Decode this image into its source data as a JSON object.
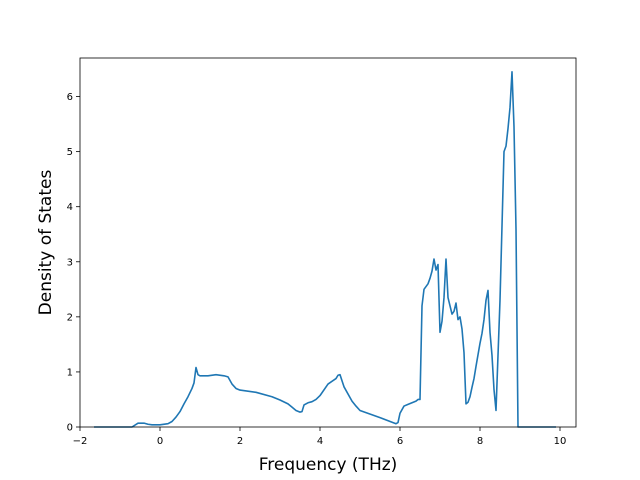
{
  "chart_data": {
    "type": "line",
    "title": "",
    "xlabel": "Frequency (THz)",
    "ylabel": "Density of States",
    "xlim": [
      -2.0,
      10.4
    ],
    "ylim": [
      0,
      6.7
    ],
    "xticks": [
      -2,
      0,
      2,
      4,
      6,
      8,
      10
    ],
    "yticks": [
      0,
      1,
      2,
      3,
      4,
      5,
      6
    ],
    "grid": false,
    "series": [
      {
        "color": "#1f77b4",
        "x": [
          -1.65,
          -0.7,
          -0.55,
          -0.4,
          -0.3,
          -0.2,
          0.0,
          0.2,
          0.3,
          0.4,
          0.5,
          0.6,
          0.7,
          0.8,
          0.85,
          0.9,
          0.95,
          1.0,
          1.2,
          1.4,
          1.6,
          1.7,
          1.8,
          1.9,
          2.0,
          2.4,
          2.8,
          3.0,
          3.2,
          3.3,
          3.4,
          3.5,
          3.55,
          3.6,
          3.7,
          3.8,
          3.9,
          4.0,
          4.2,
          4.4,
          4.45,
          4.5,
          4.6,
          4.8,
          4.9,
          5.0,
          5.5,
          5.9,
          5.95,
          6.0,
          6.1,
          6.2,
          6.3,
          6.4,
          6.45,
          6.5,
          6.55,
          6.6,
          6.7,
          6.75,
          6.8,
          6.85,
          6.9,
          6.95,
          7.0,
          7.05,
          7.1,
          7.15,
          7.2,
          7.3,
          7.35,
          7.4,
          7.45,
          7.5,
          7.55,
          7.6,
          7.65,
          7.7,
          7.75,
          7.8,
          7.85,
          7.9,
          8.0,
          8.05,
          8.1,
          8.15,
          8.2,
          8.25,
          8.3,
          8.35,
          8.4,
          8.5,
          8.6,
          8.65,
          8.7,
          8.75,
          8.8,
          8.85,
          8.9,
          8.95,
          9.0,
          9.4,
          9.9
        ],
        "y": [
          0.0,
          0.0,
          0.07,
          0.07,
          0.05,
          0.04,
          0.04,
          0.06,
          0.1,
          0.18,
          0.28,
          0.42,
          0.55,
          0.7,
          0.8,
          1.08,
          0.95,
          0.93,
          0.93,
          0.95,
          0.93,
          0.91,
          0.78,
          0.7,
          0.67,
          0.63,
          0.55,
          0.49,
          0.42,
          0.36,
          0.3,
          0.27,
          0.28,
          0.4,
          0.44,
          0.46,
          0.5,
          0.57,
          0.78,
          0.88,
          0.94,
          0.95,
          0.73,
          0.47,
          0.38,
          0.3,
          0.17,
          0.06,
          0.08,
          0.25,
          0.38,
          0.41,
          0.44,
          0.47,
          0.5,
          0.5,
          2.2,
          2.5,
          2.6,
          2.7,
          2.83,
          3.05,
          2.85,
          2.95,
          1.72,
          1.92,
          2.35,
          3.05,
          2.35,
          2.05,
          2.1,
          2.25,
          1.95,
          2.0,
          1.78,
          1.35,
          0.42,
          0.45,
          0.55,
          0.72,
          0.88,
          1.1,
          1.52,
          1.7,
          1.95,
          2.3,
          2.48,
          1.72,
          1.3,
          0.68,
          0.3,
          2.3,
          5.0,
          5.1,
          5.42,
          5.8,
          6.45,
          5.45,
          3.6,
          0.0,
          0.0,
          0.0,
          0.0
        ]
      }
    ]
  }
}
